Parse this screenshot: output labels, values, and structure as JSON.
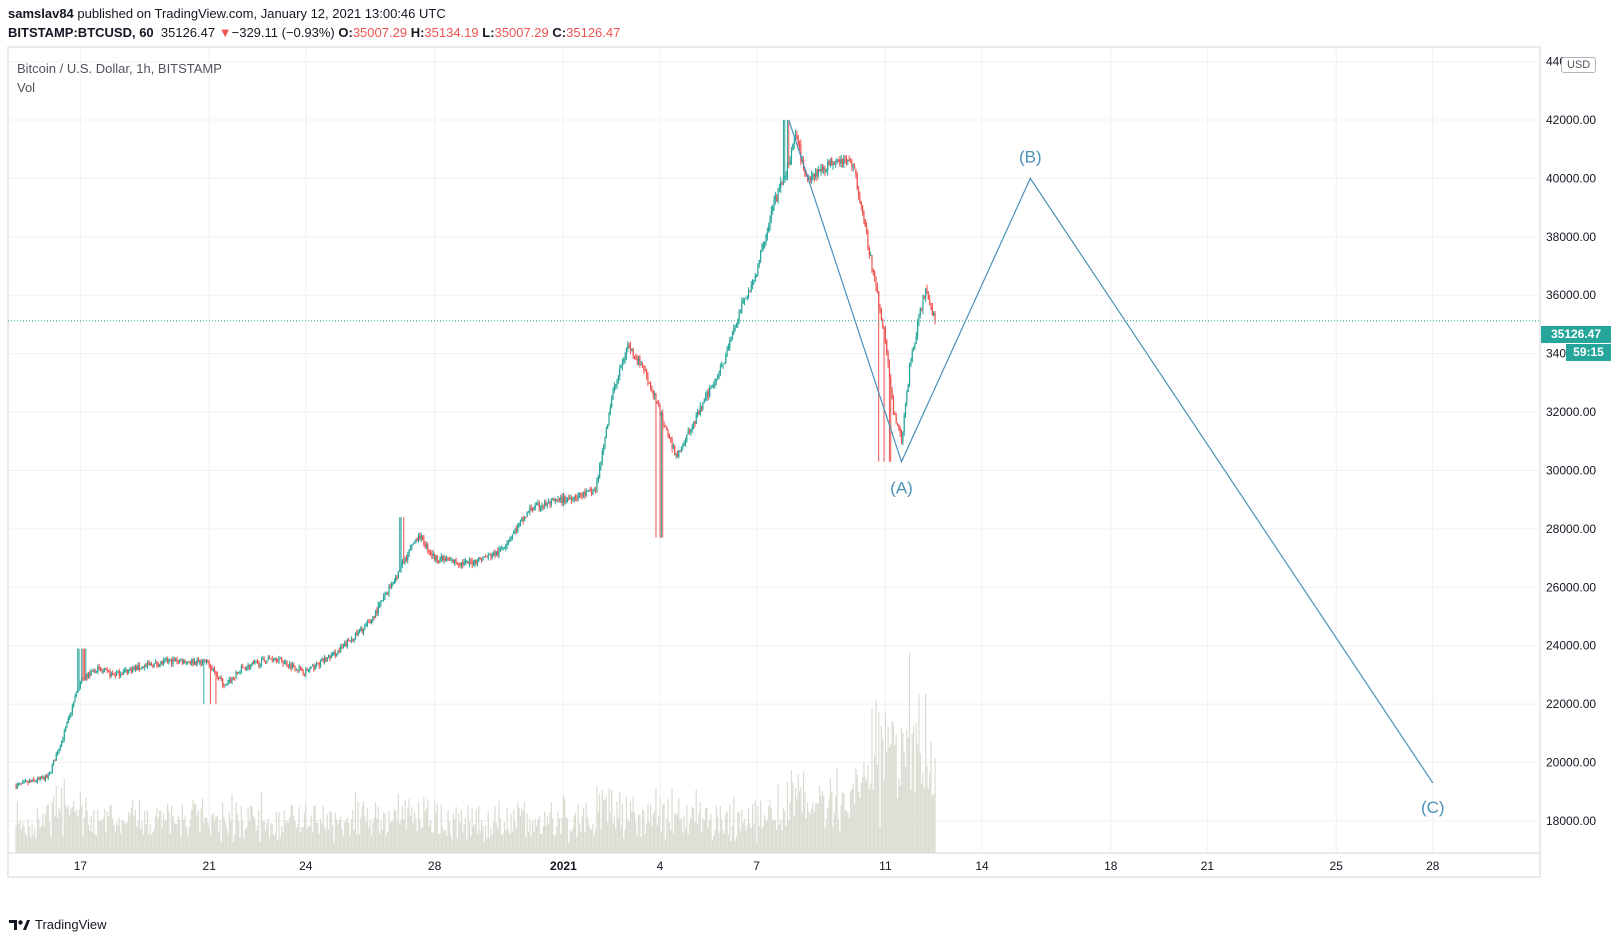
{
  "header": {
    "author": "samslav84",
    "published_text": " published on TradingView.com, January 12, 2021 13:00:46 UTC",
    "symbol": "BITSTAMP:BTCUSD, 60",
    "last": "35126.47",
    "change_arrow": "▼",
    "change": "−329.11 (−0.93%)",
    "open_label": "O:",
    "open": "35007.29",
    "high_label": "H:",
    "high": "35134.19",
    "low_label": "L:",
    "low": "35007.29",
    "close_label": "C:",
    "close": "35126.47"
  },
  "legend": {
    "series": "Bitcoin / U.S. Dollar, 1h, BITSTAMP",
    "volume": "Vol"
  },
  "axis": {
    "currency": "USD",
    "price_badge": "35126.47",
    "timer_badge": "59:15"
  },
  "brand": {
    "name": "TradingView"
  },
  "colors": {
    "up": "#26a69a",
    "down": "#ef5350",
    "wave": "#4a90b8",
    "grid": "#eef0f3",
    "volume": "#d8dcd0"
  },
  "chart_data": {
    "type": "candlestick",
    "title": "Bitcoin / U.S. Dollar, 1h, BITSTAMP",
    "ylim": [
      16900,
      44500
    ],
    "y_ticks": [
      18000,
      20000,
      22000,
      24000,
      26000,
      28000,
      30000,
      32000,
      34000,
      36000,
      38000,
      40000,
      42000,
      44000
    ],
    "y_tick_labels": [
      "18000.00",
      "20000.00",
      "22000.00",
      "24000.00",
      "26000.00",
      "28000.00",
      "30000.00",
      "32000.00",
      "34000.00",
      "36000.00",
      "38000.00",
      "40000.00",
      "42000.00",
      "44000.00"
    ],
    "x_tick_labels": [
      "17",
      "21",
      "24",
      "28",
      "2021",
      "4",
      "7",
      "11",
      "14",
      "18",
      "21",
      "25",
      "28"
    ],
    "x_tick_dates": [
      "2020-12-17",
      "2020-12-21",
      "2020-12-24",
      "2020-12-28",
      "2021-01-01",
      "2021-01-04",
      "2021-01-07",
      "2021-01-11",
      "2021-01-14",
      "2021-01-18",
      "2021-01-21",
      "2021-01-25",
      "2021-01-28"
    ],
    "x_range": [
      "2020-12-15",
      "2021-01-30"
    ],
    "price_path": [
      [
        "2020-12-15",
        19200
      ],
      [
        "2020-12-16",
        19500
      ],
      [
        "2020-12-16 12:00",
        21000
      ],
      [
        "2020-12-17",
        22800
      ],
      [
        "2020-12-17 12:00",
        23200
      ],
      [
        "2020-12-18",
        23000
      ],
      [
        "2020-12-19",
        23300
      ],
      [
        "2020-12-20",
        23500
      ],
      [
        "2020-12-21",
        23400
      ],
      [
        "2020-12-21 12:00",
        22600
      ],
      [
        "2020-12-22",
        23200
      ],
      [
        "2020-12-23",
        23600
      ],
      [
        "2020-12-24",
        23100
      ],
      [
        "2020-12-25",
        23800
      ],
      [
        "2020-12-26",
        24800
      ],
      [
        "2020-12-27",
        26800
      ],
      [
        "2020-12-27 12:00",
        27800
      ],
      [
        "2020-12-28",
        27000
      ],
      [
        "2020-12-29",
        26800
      ],
      [
        "2020-12-30",
        27200
      ],
      [
        "2020-12-31",
        28700
      ],
      [
        "2021-01-01",
        29000
      ],
      [
        "2021-01-02",
        29300
      ],
      [
        "2021-01-02 12:00",
        32500
      ],
      [
        "2021-01-03",
        34300
      ],
      [
        "2021-01-03 12:00",
        33500
      ],
      [
        "2021-01-04",
        32000
      ],
      [
        "2021-01-04 12:00",
        30500
      ],
      [
        "2021-01-05",
        31500
      ],
      [
        "2021-01-06",
        33800
      ],
      [
        "2021-01-06 12:00",
        35500
      ],
      [
        "2021-01-07",
        36800
      ],
      [
        "2021-01-07 12:00",
        39000
      ],
      [
        "2021-01-08",
        40500
      ],
      [
        "2021-01-08 06:00",
        41500
      ],
      [
        "2021-01-08 12:00",
        40000
      ],
      [
        "2021-01-09",
        40300
      ],
      [
        "2021-01-09 12:00",
        40700
      ],
      [
        "2021-01-10",
        40500
      ],
      [
        "2021-01-10 06:00",
        39000
      ],
      [
        "2021-01-10 12:00",
        37500
      ],
      [
        "2021-01-11",
        34500
      ],
      [
        "2021-01-11 06:00",
        32000
      ],
      [
        "2021-01-11 12:00",
        31000
      ],
      [
        "2021-01-11 18:00",
        33500
      ],
      [
        "2021-01-12",
        35000
      ],
      [
        "2021-01-12 06:00",
        36200
      ],
      [
        "2021-01-12 13:00",
        35126
      ]
    ],
    "notable_wicks": [
      [
        "2020-12-17",
        23900,
        "high"
      ],
      [
        "2020-12-21",
        22000,
        "low"
      ],
      [
        "2020-12-27",
        28400,
        "high"
      ],
      [
        "2021-01-02",
        30000,
        "low"
      ],
      [
        "2021-01-04",
        27700,
        "low"
      ],
      [
        "2021-01-08",
        42000,
        "high"
      ],
      [
        "2021-01-11",
        30300,
        "low"
      ]
    ],
    "last_price": 35126.47,
    "wave_labels": [
      "(A)",
      "(B)",
      "(C)"
    ],
    "wave_points": [
      [
        "2021-01-08",
        42000
      ],
      [
        "2021-01-11 12:00",
        30300
      ],
      [
        "2021-01-15 12:00",
        40000
      ],
      [
        "2021-01-28",
        19300
      ]
    ],
    "grid": true,
    "volume_pane": true
  }
}
